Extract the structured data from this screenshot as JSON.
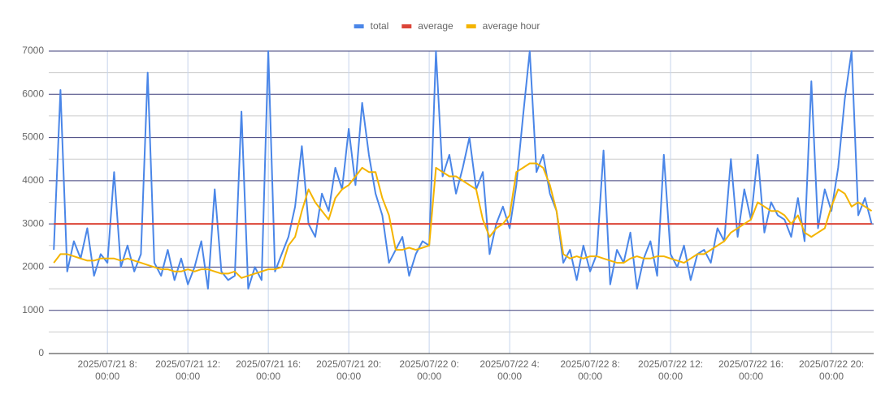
{
  "chart_data": {
    "type": "line",
    "x": [
      "2025-07-21T05:20",
      "2025-07-21T05:40",
      "2025-07-21T06:00",
      "2025-07-21T06:20",
      "2025-07-21T06:40",
      "2025-07-21T07:00",
      "2025-07-21T07:20",
      "2025-07-21T07:40",
      "2025-07-21T08:00",
      "2025-07-21T08:20",
      "2025-07-21T08:40",
      "2025-07-21T09:00",
      "2025-07-21T09:20",
      "2025-07-21T09:40",
      "2025-07-21T10:00",
      "2025-07-21T10:20",
      "2025-07-21T10:40",
      "2025-07-21T11:00",
      "2025-07-21T11:20",
      "2025-07-21T11:40",
      "2025-07-21T12:00",
      "2025-07-21T12:20",
      "2025-07-21T12:40",
      "2025-07-21T13:00",
      "2025-07-21T13:20",
      "2025-07-21T13:40",
      "2025-07-21T14:00",
      "2025-07-21T14:20",
      "2025-07-21T14:40",
      "2025-07-21T15:00",
      "2025-07-21T15:20",
      "2025-07-21T15:40",
      "2025-07-21T16:00",
      "2025-07-21T16:20",
      "2025-07-21T16:40",
      "2025-07-21T17:00",
      "2025-07-21T17:20",
      "2025-07-21T17:40",
      "2025-07-21T18:00",
      "2025-07-21T18:20",
      "2025-07-21T18:40",
      "2025-07-21T19:00",
      "2025-07-21T19:20",
      "2025-07-21T19:40",
      "2025-07-21T20:00",
      "2025-07-21T20:20",
      "2025-07-21T20:40",
      "2025-07-21T21:00",
      "2025-07-21T21:20",
      "2025-07-21T21:40",
      "2025-07-21T22:00",
      "2025-07-21T22:20",
      "2025-07-21T22:40",
      "2025-07-21T23:00",
      "2025-07-21T23:20",
      "2025-07-21T23:40",
      "2025-07-22T00:00",
      "2025-07-22T00:20",
      "2025-07-22T00:40",
      "2025-07-22T01:00",
      "2025-07-22T01:20",
      "2025-07-22T01:40",
      "2025-07-22T02:00",
      "2025-07-22T02:20",
      "2025-07-22T02:40",
      "2025-07-22T03:00",
      "2025-07-22T03:20",
      "2025-07-22T03:40",
      "2025-07-22T04:00",
      "2025-07-22T04:20",
      "2025-07-22T04:40",
      "2025-07-22T05:00",
      "2025-07-22T05:20",
      "2025-07-22T05:40",
      "2025-07-22T06:00",
      "2025-07-22T06:20",
      "2025-07-22T06:40",
      "2025-07-22T07:00",
      "2025-07-22T07:20",
      "2025-07-22T07:40",
      "2025-07-22T08:00",
      "2025-07-22T08:20",
      "2025-07-22T08:40",
      "2025-07-22T09:00",
      "2025-07-22T09:20",
      "2025-07-22T09:40",
      "2025-07-22T10:00",
      "2025-07-22T10:20",
      "2025-07-22T10:40",
      "2025-07-22T11:00",
      "2025-07-22T11:20",
      "2025-07-22T11:40",
      "2025-07-22T12:00",
      "2025-07-22T12:20",
      "2025-07-22T12:40",
      "2025-07-22T13:00",
      "2025-07-22T13:20",
      "2025-07-22T13:40",
      "2025-07-22T14:00",
      "2025-07-22T14:20",
      "2025-07-22T14:40",
      "2025-07-22T15:00",
      "2025-07-22T15:20",
      "2025-07-22T15:40",
      "2025-07-22T16:00",
      "2025-07-22T16:20",
      "2025-07-22T16:40",
      "2025-07-22T17:00",
      "2025-07-22T17:20",
      "2025-07-22T17:40",
      "2025-07-22T18:00",
      "2025-07-22T18:20",
      "2025-07-22T18:40",
      "2025-07-22T19:00",
      "2025-07-22T19:20",
      "2025-07-22T19:40",
      "2025-07-22T20:00",
      "2025-07-22T20:20",
      "2025-07-22T20:40",
      "2025-07-22T21:00",
      "2025-07-22T21:20",
      "2025-07-22T21:40",
      "2025-07-22T22:00"
    ],
    "series": [
      {
        "name": "total",
        "color": "#4a86e8",
        "values": [
          2400,
          6100,
          1900,
          2600,
          2200,
          2900,
          1800,
          2300,
          2100,
          4200,
          2000,
          2500,
          1900,
          2300,
          6500,
          2100,
          1800,
          2400,
          1700,
          2200,
          1600,
          2000,
          2600,
          1500,
          3800,
          1900,
          1700,
          1800,
          5600,
          1500,
          2000,
          1700,
          7000,
          1900,
          2300,
          2700,
          3400,
          4800,
          3000,
          2700,
          3700,
          3300,
          4300,
          3800,
          5200,
          3900,
          5800,
          4600,
          3700,
          3200,
          2100,
          2400,
          2700,
          1800,
          2300,
          2600,
          2500,
          7000,
          4100,
          4600,
          3700,
          4300,
          5000,
          3800,
          4200,
          2300,
          3000,
          3400,
          2900,
          3900,
          5500,
          7000,
          4200,
          4600,
          3700,
          3300,
          2100,
          2400,
          1700,
          2500,
          1900,
          2300,
          4700,
          1600,
          2400,
          2100,
          2800,
          1500,
          2200,
          2600,
          1800,
          4600,
          2300,
          2000,
          2500,
          1700,
          2300,
          2400,
          2100,
          2900,
          2600,
          4500,
          2700,
          3800,
          3100,
          4600,
          2800,
          3500,
          3200,
          3100,
          2700,
          3600,
          2600,
          6300,
          2900,
          3800,
          3300,
          4300,
          5900,
          7000,
          3200,
          3600,
          3000
        ]
      },
      {
        "name": "average",
        "color": "#db4437",
        "values": [
          3000,
          3000,
          3000,
          3000,
          3000,
          3000,
          3000,
          3000,
          3000,
          3000,
          3000,
          3000,
          3000,
          3000,
          3000,
          3000,
          3000,
          3000,
          3000,
          3000,
          3000,
          3000,
          3000,
          3000,
          3000,
          3000,
          3000,
          3000,
          3000,
          3000,
          3000,
          3000,
          3000,
          3000,
          3000,
          3000,
          3000,
          3000,
          3000,
          3000,
          3000,
          3000,
          3000,
          3000,
          3000,
          3000,
          3000,
          3000,
          3000,
          3000,
          3000,
          3000,
          3000,
          3000,
          3000,
          3000,
          3000,
          3000,
          3000,
          3000,
          3000,
          3000,
          3000,
          3000,
          3000,
          3000,
          3000,
          3000,
          3000,
          3000,
          3000,
          3000,
          3000,
          3000,
          3000,
          3000,
          3000,
          3000,
          3000,
          3000,
          3000,
          3000,
          3000,
          3000,
          3000,
          3000,
          3000,
          3000,
          3000,
          3000,
          3000,
          3000,
          3000,
          3000,
          3000,
          3000,
          3000,
          3000,
          3000,
          3000,
          3000,
          3000,
          3000,
          3000,
          3000,
          3000,
          3000,
          3000,
          3000,
          3000,
          3000,
          3000,
          3000,
          3000,
          3000,
          3000,
          3000,
          3000,
          3000,
          3000,
          3000,
          3000,
          3000
        ]
      },
      {
        "name": "average hour",
        "color": "#f4b400",
        "values": [
          2100,
          2300,
          2300,
          2250,
          2200,
          2150,
          2150,
          2200,
          2200,
          2200,
          2150,
          2200,
          2150,
          2100,
          2050,
          2000,
          1950,
          1950,
          1900,
          1900,
          1950,
          1900,
          1950,
          1950,
          1900,
          1850,
          1850,
          1900,
          1750,
          1800,
          1850,
          1900,
          1950,
          1950,
          2000,
          2500,
          2700,
          3300,
          3800,
          3500,
          3300,
          3100,
          3600,
          3800,
          3900,
          4100,
          4300,
          4200,
          4200,
          3600,
          3200,
          2400,
          2400,
          2450,
          2400,
          2450,
          2500,
          4300,
          4200,
          4100,
          4100,
          4000,
          3900,
          3800,
          3100,
          2700,
          2900,
          3000,
          3200,
          4200,
          4300,
          4400,
          4400,
          4300,
          3900,
          3300,
          2300,
          2200,
          2250,
          2200,
          2250,
          2250,
          2200,
          2150,
          2100,
          2100,
          2200,
          2250,
          2200,
          2200,
          2250,
          2250,
          2200,
          2150,
          2100,
          2200,
          2300,
          2300,
          2400,
          2500,
          2600,
          2800,
          2900,
          3000,
          3100,
          3500,
          3400,
          3300,
          3300,
          3200,
          3000,
          3200,
          2800,
          2700,
          2800,
          2900,
          3400,
          3800,
          3700,
          3400,
          3500,
          3400,
          3300
        ]
      }
    ],
    "xlim": [
      "2025-07-21T05:05",
      "2025-07-22T22:06"
    ],
    "xticks": [
      {
        "value": "2025-07-21T08:00",
        "label": "2025/07/21 8:00:00"
      },
      {
        "value": "2025-07-21T12:00",
        "label": "2025/07/21 12:00:00"
      },
      {
        "value": "2025-07-21T16:00",
        "label": "2025/07/21 16:00:00"
      },
      {
        "value": "2025-07-21T20:00",
        "label": "2025/07/21 20:00:00"
      },
      {
        "value": "2025-07-22T00:00",
        "label": "2025/07/22 0:00:00"
      },
      {
        "value": "2025-07-22T04:00",
        "label": "2025/07/22 4:00:00"
      },
      {
        "value": "2025-07-22T08:00",
        "label": "2025/07/22 8:00:00"
      },
      {
        "value": "2025-07-22T12:00",
        "label": "2025/07/22 12:00:00"
      },
      {
        "value": "2025-07-22T16:00",
        "label": "2025/07/22 16:00:00"
      },
      {
        "value": "2025-07-22T20:00",
        "label": "2025/07/22 20:00:00"
      }
    ],
    "ylim": [
      0,
      7000
    ],
    "yticks": [
      0,
      1000,
      2000,
      3000,
      4000,
      5000,
      6000,
      7000
    ],
    "grid": true,
    "legend": "top"
  }
}
